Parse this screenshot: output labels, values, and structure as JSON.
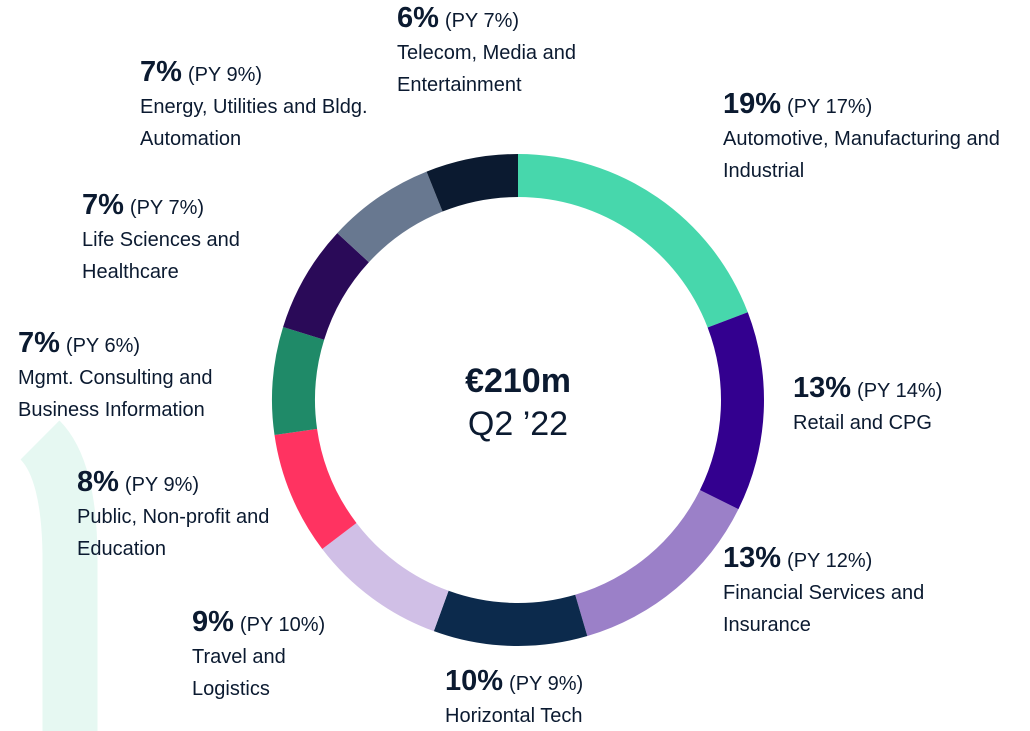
{
  "chart_data": {
    "type": "donut",
    "center_value": "€210m",
    "center_label": "Q2 ’22",
    "categories": [
      "Automotive, Manufacturing and Industrial",
      "Retail and CPG",
      "Financial Services and Insurance",
      "Horizontal Tech",
      "Travel and Logistics",
      "Public, Non-profit and Education",
      "Mgmt. Consulting and Business Information",
      "Life Sciences and Healthcare",
      "Energy, Utilities and Bldg. Automation",
      "Telecom, Media and Entertainment"
    ],
    "values": [
      19,
      13,
      13,
      10,
      9,
      8,
      7,
      7,
      7,
      6
    ],
    "value_labels": [
      "19%",
      "13%",
      "13%",
      "10%",
      "9%",
      "8%",
      "7%",
      "7%",
      "7%",
      "6%"
    ],
    "prior_year_labels": [
      "(PY 17%)",
      "(PY 14%)",
      "(PY 12%)",
      "(PY 9%)",
      "(PY 10%)",
      "(PY 9%)",
      "(PY 6%)",
      "(PY 7%)",
      "(PY 9%)",
      "(PY 7%)"
    ],
    "colors": [
      "#47d7ac",
      "#33008f",
      "#9b80c8",
      "#0c2a4c",
      "#d0bfe6",
      "#ff3361",
      "#1f8a68",
      "#2a0a58",
      "#687890",
      "#0b1a30"
    ]
  }
}
